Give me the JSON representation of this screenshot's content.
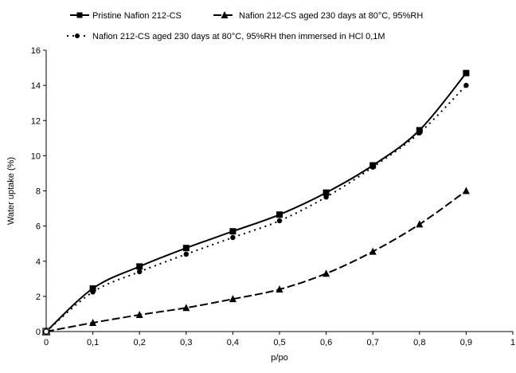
{
  "chart_data": {
    "type": "line",
    "xlabel": "p/po",
    "ylabel": "Water uptake (%)",
    "xlim": [
      0,
      1
    ],
    "ylim": [
      0,
      16
    ],
    "xticks": [
      0,
      0.1,
      0.2,
      0.3,
      0.4,
      0.5,
      0.6,
      0.7,
      0.8,
      0.9,
      1
    ],
    "xtick_labels": [
      "0",
      "0,1",
      "0,2",
      "0,3",
      "0,4",
      "0,5",
      "0,6",
      "0,7",
      "0,8",
      "0,9",
      "1"
    ],
    "yticks": [
      0,
      2,
      4,
      6,
      8,
      10,
      12,
      14,
      16
    ],
    "ytick_labels": [
      "0",
      "2",
      "4",
      "6",
      "8",
      "10",
      "12",
      "14",
      "16"
    ],
    "grid": false,
    "legend_position": "top",
    "series": [
      {
        "name": "Pristine Nafion 212-CS",
        "marker": "square",
        "line_style": "solid",
        "x": [
          0,
          0.1,
          0.2,
          0.3,
          0.4,
          0.5,
          0.6,
          0.7,
          0.8,
          0.9
        ],
        "y": [
          0,
          2.45,
          3.7,
          4.75,
          5.7,
          6.65,
          7.9,
          9.45,
          11.45,
          14.7
        ]
      },
      {
        "name": "Nafion 212-CS aged 230 days at 80°C, 95%RH",
        "marker": "triangle",
        "line_style": "dashed",
        "x": [
          0,
          0.1,
          0.2,
          0.3,
          0.4,
          0.5,
          0.6,
          0.7,
          0.8,
          0.9
        ],
        "y": [
          0,
          0.5,
          0.95,
          1.35,
          1.85,
          2.4,
          3.3,
          4.55,
          6.1,
          8.0
        ]
      },
      {
        "name": "Nafion 212-CS aged 230 days at 80°C, 95%RH then immersed in HCl 0,1M",
        "marker": "circle",
        "line_style": "dotted",
        "x": [
          0,
          0.1,
          0.2,
          0.3,
          0.4,
          0.5,
          0.6,
          0.7,
          0.8,
          0.9
        ],
        "y": [
          0,
          2.25,
          3.4,
          4.4,
          5.35,
          6.3,
          7.65,
          9.35,
          11.3,
          14.0
        ]
      }
    ]
  }
}
